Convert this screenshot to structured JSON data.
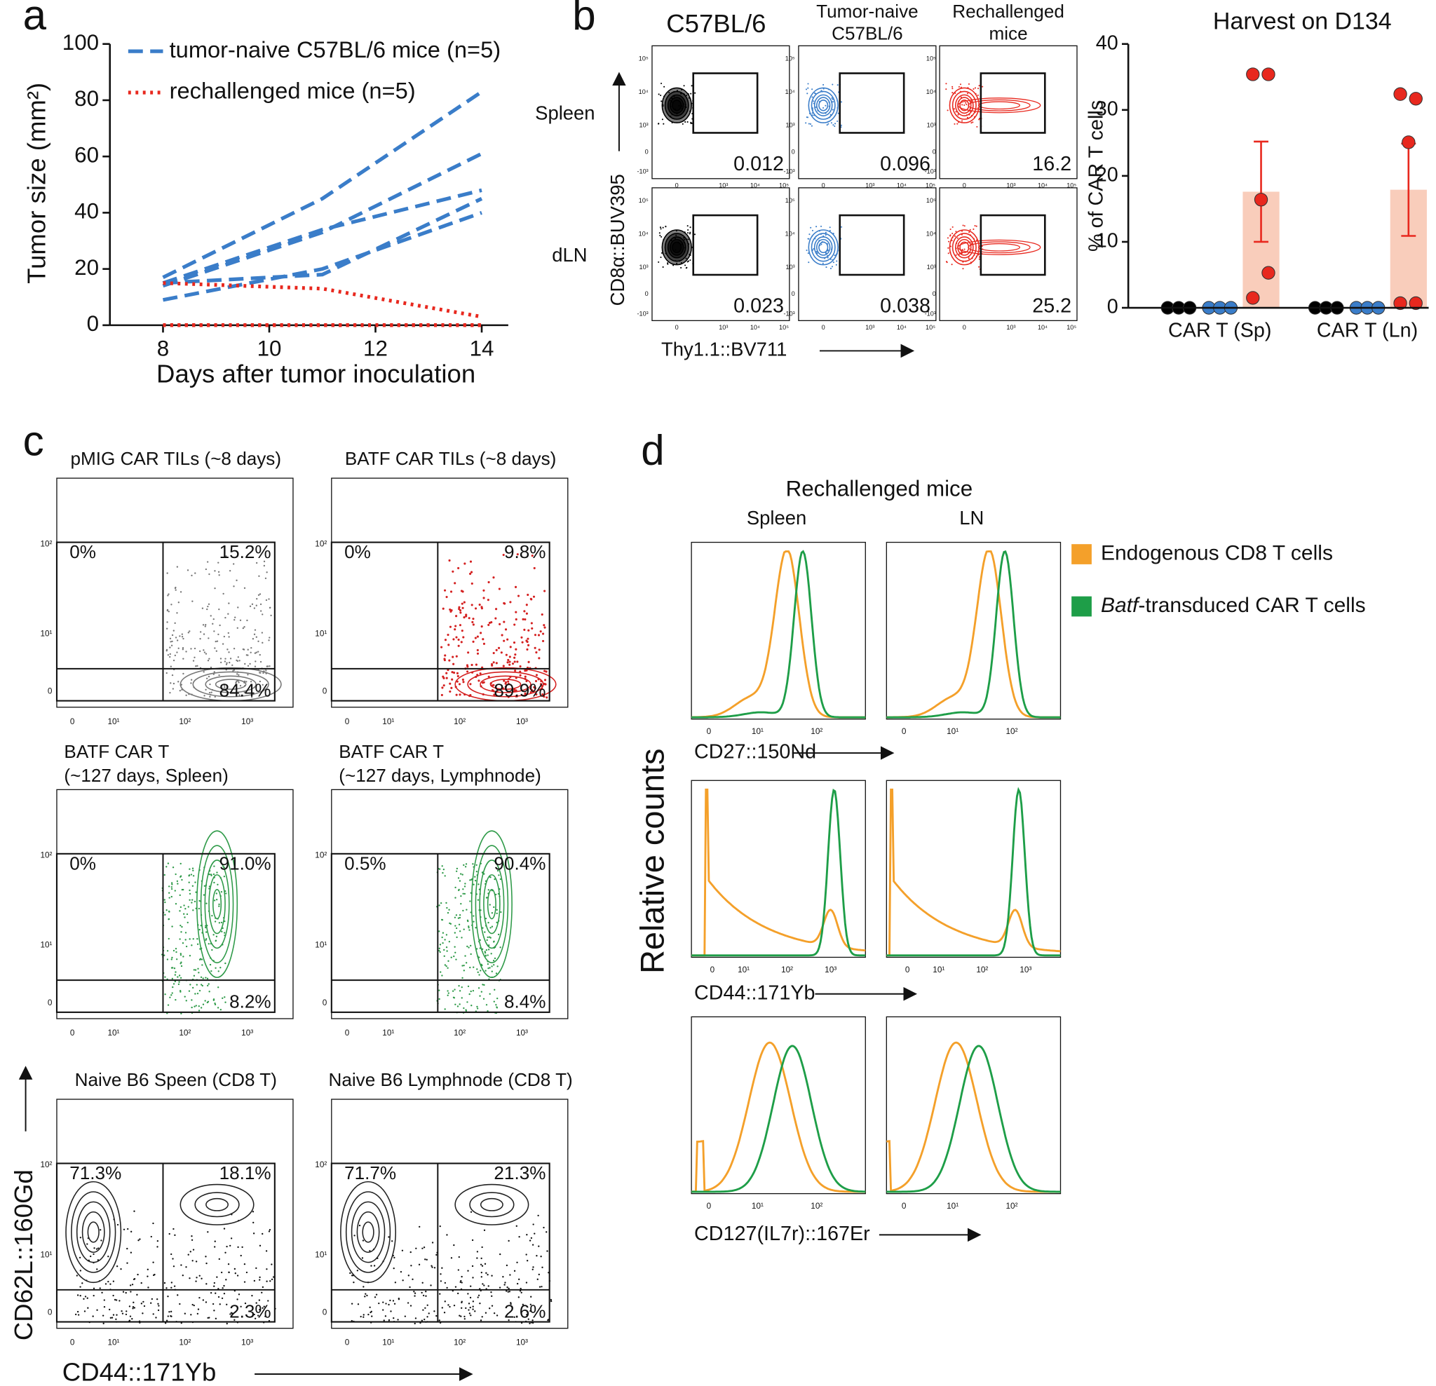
{
  "panels": [
    "a",
    "b",
    "c",
    "d"
  ],
  "chart_data": [
    {
      "type": "line",
      "ylabel": "Tumor size (mm²)",
      "xlabel": "Days after tumor inoculation",
      "x": [
        8,
        11,
        14
      ],
      "xlim": [
        7,
        14.5
      ],
      "xticks": [
        8,
        10,
        12,
        14
      ],
      "ylim": [
        0,
        100
      ],
      "yticks": [
        0,
        20,
        40,
        60,
        80,
        100
      ],
      "series": [
        {
          "name": "tumor-naive C57BL/6 mice (n=5)",
          "color": "#3a7dc9",
          "dash": "dashed",
          "lines": [
            [
              17,
              45,
              83
            ],
            [
              14,
              33,
              61
            ],
            [
              15,
              34,
              48
            ],
            [
              15,
              18,
              45
            ],
            [
              9,
              20,
              40
            ]
          ]
        },
        {
          "name": "rechallenged mice (n=5)",
          "color": "#e8281e",
          "dash": "dotted",
          "lines": [
            [
              15,
              13,
              3
            ],
            [
              0,
              0,
              0
            ],
            [
              0,
              0,
              0
            ],
            [
              0,
              0,
              0
            ],
            [
              0,
              0,
              0
            ]
          ]
        }
      ]
    },
    {
      "type": "bar",
      "title": "Harvest on D134",
      "ylabel": "% of CAR T cells",
      "categories": [
        "CAR T (Sp)",
        "CAR T (Ln)"
      ],
      "ylim": [
        0,
        40
      ],
      "yticks": [
        0,
        10,
        20,
        30,
        40
      ],
      "series": [
        {
          "color": "#000000",
          "values": [
            0,
            0
          ],
          "points": [
            [
              0,
              0,
              0
            ],
            [
              0,
              0,
              0
            ]
          ]
        },
        {
          "color": "#3a7dc9",
          "values": [
            0,
            0
          ],
          "points": [
            [
              0,
              0,
              0
            ],
            [
              0,
              0,
              0
            ]
          ]
        },
        {
          "color": "#e8281e",
          "bar_color": "#f9cdbb",
          "values": [
            17.6,
            17.9
          ],
          "errors": [
            7.6,
            7.0
          ],
          "points": [
            [
              35.4,
              35.4,
              16.4,
              5.3,
              1.5
            ],
            [
              32.4,
              31.7,
              25.1,
              0.7,
              0.7
            ]
          ]
        }
      ]
    }
  ],
  "flow_b": {
    "columns": [
      [
        "C57BL/6"
      ],
      [
        "Tumor-naive",
        "C57BL/6"
      ],
      [
        "Rechallenged",
        "mice"
      ]
    ],
    "rows": [
      "Spleen",
      "dLN"
    ],
    "percents": [
      [
        "0.012",
        "0.096",
        "16.2"
      ],
      [
        "0.023",
        "0.038",
        "25.2"
      ]
    ],
    "ylabel": "CD8α::BUV395",
    "xlabel": "Thy1.1::BV711",
    "yticks": [
      "-10³",
      "0",
      "10³",
      "10⁴",
      "10⁵"
    ],
    "xticks": [
      "0",
      "10³",
      "10⁴",
      "10⁵"
    ]
  },
  "flow_c": {
    "plots": [
      {
        "title": [
          "pMIG CAR TILs (~8 days)"
        ],
        "percents": [
          "0%",
          "15.2%",
          "84.4%"
        ]
      },
      {
        "title": [
          "BATF CAR TILs (~8 days)"
        ],
        "percents": [
          "0%",
          "9.8%",
          "89.9%"
        ]
      },
      {
        "title": [
          "BATF CAR T",
          "(~127 days, Spleen)"
        ],
        "percents": [
          "0%",
          "91.0%",
          "8.2%"
        ]
      },
      {
        "title": [
          "BATF CAR T",
          "(~127 days, Lymphnode)"
        ],
        "percents": [
          "0.5%",
          "90.4%",
          "8.4%"
        ]
      },
      {
        "title": [
          "Naive B6 Speen (CD8 T)"
        ],
        "percents": [
          "71.3%",
          "18.1%",
          "2.3%"
        ]
      },
      {
        "title": [
          "Naive B6 Lymphnode (CD8 T)"
        ],
        "percents": [
          "71.7%",
          "21.3%",
          "2.6%"
        ]
      }
    ],
    "ylabel": "CD62L::160Gd",
    "xlabel": "CD44::171Yb",
    "yticks": [
      "0",
      "10¹",
      "10²"
    ],
    "xticks": [
      "0",
      "10¹",
      "10²",
      "10³"
    ]
  },
  "flow_d": {
    "title": "Rechallenged mice",
    "columns": [
      "Spleen",
      "LN"
    ],
    "rows": [
      {
        "xlabel": "CD27::150Nd",
        "xticks": [
          "0",
          "10¹",
          "10²"
        ]
      },
      {
        "xlabel": "CD44::171Yb",
        "xticks": [
          "0",
          "10¹",
          "10²",
          "10³"
        ]
      },
      {
        "xlabel": "CD127(IL7r)::167Er",
        "xticks": [
          "0",
          "10¹",
          "10²"
        ]
      }
    ],
    "ylabel": "Relative counts",
    "legend": [
      {
        "label": "Endogenous CD8 T cells",
        "color": "#f4a02a"
      },
      {
        "label_italic": "Batf",
        "label": "-transduced CAR T cells",
        "color": "#1e9e48"
      }
    ]
  }
}
